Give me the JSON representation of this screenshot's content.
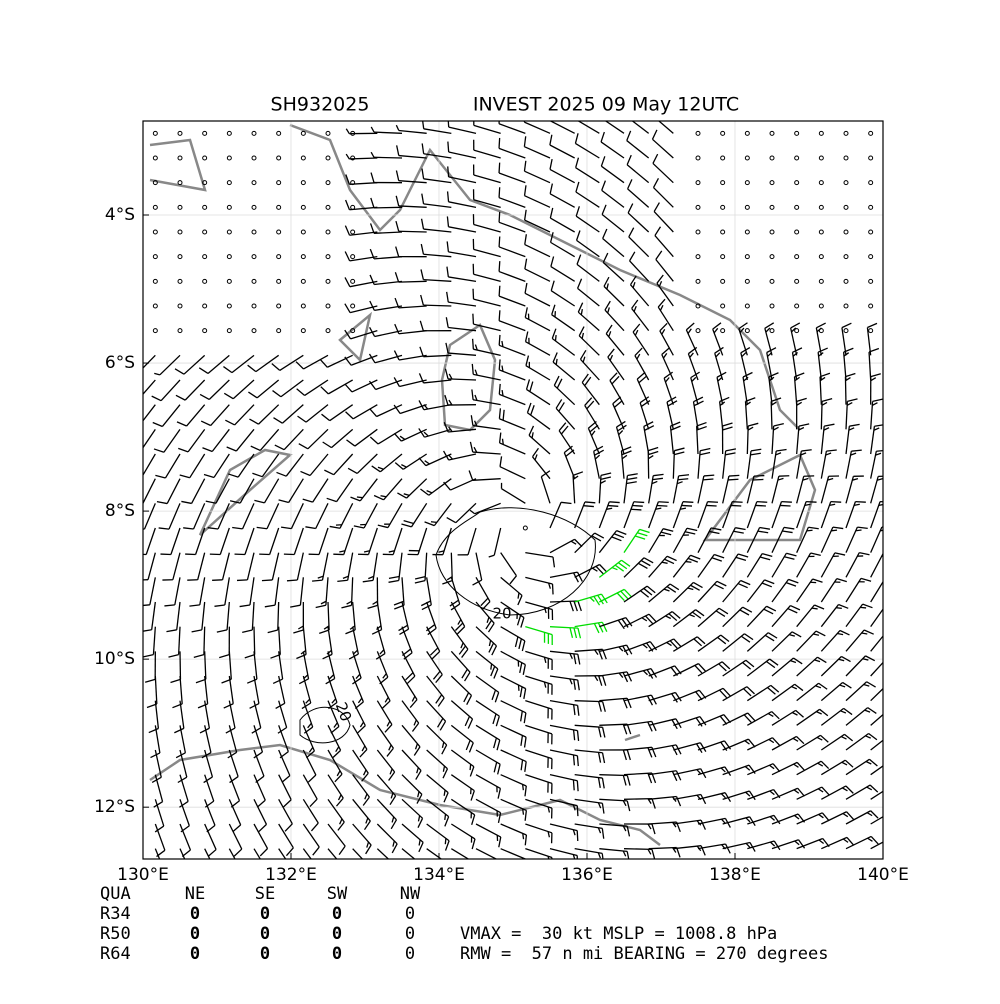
{
  "map": {
    "title_left": "SH932025",
    "title_right": "INVEST 2025 09 May 12UTC",
    "xlim": [
      130,
      140
    ],
    "ylim": [
      -12.7,
      -2.73
    ],
    "xticks": [
      {
        "value": 130,
        "label": "130°E"
      },
      {
        "value": 132,
        "label": "132°E"
      },
      {
        "value": 134,
        "label": "134°E"
      },
      {
        "value": 136,
        "label": "136°E"
      },
      {
        "value": 138,
        "label": "138°E"
      },
      {
        "value": 140,
        "label": "140°E"
      }
    ],
    "yticks": [
      {
        "value": -4,
        "label": "4°S"
      },
      {
        "value": -6,
        "label": "6°S"
      },
      {
        "value": -8,
        "label": "8°S"
      },
      {
        "value": -10,
        "label": "10°S"
      },
      {
        "value": -12,
        "label": "12°S"
      }
    ],
    "contour_labels": [
      "20",
      "20"
    ]
  },
  "table": {
    "header": [
      "QUA",
      "NE",
      "SE",
      "SW",
      "NW"
    ],
    "rows": [
      [
        "R34",
        0,
        0,
        0,
        0
      ],
      [
        "R50",
        0,
        0,
        0,
        0
      ],
      [
        "R64",
        0,
        0,
        0,
        0
      ]
    ]
  },
  "stats": [
    "VMAX =  30 kt MSLP = 1008.8 hPa",
    "RMW =  57 n mi BEARING = 270 degrees"
  ]
}
